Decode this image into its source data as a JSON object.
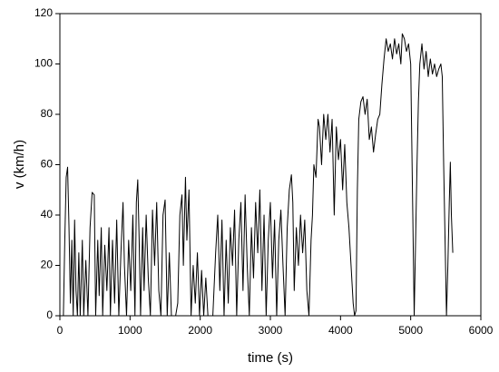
{
  "chart_data": {
    "type": "line",
    "xlabel": "time (s)",
    "ylabel": "v (km/h)",
    "color": "#000000",
    "xlim": [
      0,
      6000
    ],
    "xticks": [
      0,
      1000,
      2000,
      3000,
      4000,
      5000,
      6000
    ],
    "ylim": [
      0,
      120
    ],
    "yticks": [
      0,
      20,
      40,
      60,
      80,
      100,
      120
    ],
    "x": [
      0,
      50,
      70,
      90,
      110,
      130,
      150,
      170,
      190,
      210,
      230,
      250,
      270,
      290,
      320,
      340,
      370,
      400,
      430,
      460,
      490,
      510,
      540,
      560,
      590,
      610,
      640,
      670,
      700,
      720,
      750,
      780,
      810,
      840,
      870,
      900,
      920,
      950,
      980,
      1010,
      1040,
      1070,
      1090,
      1110,
      1130,
      1150,
      1180,
      1200,
      1230,
      1260,
      1290,
      1320,
      1350,
      1380,
      1410,
      1440,
      1470,
      1500,
      1530,
      1560,
      1590,
      1650,
      1680,
      1710,
      1740,
      1760,
      1790,
      1810,
      1840,
      1870,
      1900,
      1930,
      1960,
      1990,
      2020,
      2050,
      2080,
      2110,
      2180,
      2220,
      2250,
      2280,
      2310,
      2340,
      2370,
      2400,
      2430,
      2460,
      2490,
      2520,
      2550,
      2580,
      2610,
      2640,
      2670,
      2700,
      2730,
      2760,
      2790,
      2820,
      2850,
      2880,
      2910,
      2940,
      2970,
      3000,
      3030,
      3060,
      3090,
      3120,
      3150,
      3180,
      3210,
      3240,
      3270,
      3300,
      3320,
      3340,
      3370,
      3400,
      3430,
      3460,
      3490,
      3520,
      3550,
      3580,
      3600,
      3620,
      3650,
      3680,
      3700,
      3730,
      3760,
      3790,
      3820,
      3850,
      3880,
      3910,
      3940,
      3970,
      4000,
      4030,
      4060,
      4090,
      4120,
      4150,
      4180,
      4200,
      4220,
      4240,
      4260,
      4290,
      4320,
      4350,
      4380,
      4410,
      4440,
      4470,
      4500,
      4530,
      4560,
      4590,
      4620,
      4650,
      4680,
      4710,
      4740,
      4770,
      4800,
      4830,
      4860,
      4880,
      4910,
      4940,
      4970,
      5000,
      5030,
      5050,
      5070,
      5090,
      5110,
      5130,
      5160,
      5190,
      5220,
      5250,
      5280,
      5310,
      5340,
      5370,
      5400,
      5430,
      5450,
      5470,
      5490,
      5510,
      5530,
      5550,
      5565,
      5580,
      5600
    ],
    "values": [
      0,
      0,
      30,
      55,
      59,
      35,
      5,
      30,
      0,
      38,
      10,
      0,
      25,
      0,
      30,
      0,
      22,
      0,
      35,
      49,
      48,
      0,
      30,
      8,
      35,
      0,
      28,
      10,
      35,
      0,
      30,
      5,
      38,
      0,
      25,
      45,
      20,
      0,
      30,
      10,
      40,
      0,
      45,
      54,
      30,
      0,
      35,
      10,
      40,
      15,
      0,
      42,
      20,
      45,
      10,
      0,
      40,
      46,
      0,
      25,
      0,
      0,
      5,
      40,
      48,
      20,
      55,
      30,
      50,
      0,
      20,
      5,
      25,
      0,
      18,
      0,
      15,
      0,
      0,
      25,
      40,
      10,
      38,
      0,
      30,
      5,
      35,
      20,
      42,
      0,
      30,
      45,
      10,
      48,
      20,
      0,
      35,
      15,
      45,
      25,
      50,
      10,
      40,
      0,
      30,
      45,
      15,
      38,
      0,
      30,
      42,
      20,
      0,
      35,
      50,
      56,
      45,
      10,
      35,
      20,
      40,
      25,
      38,
      10,
      0,
      30,
      40,
      60,
      55,
      78,
      75,
      60,
      80,
      70,
      80,
      65,
      78,
      40,
      75,
      62,
      70,
      50,
      68,
      45,
      35,
      20,
      5,
      0,
      2,
      50,
      78,
      85,
      87,
      80,
      86,
      70,
      75,
      65,
      72,
      78,
      80,
      92,
      102,
      110,
      105,
      108,
      102,
      110,
      104,
      108,
      100,
      112,
      110,
      105,
      108,
      100,
      40,
      0,
      30,
      60,
      85,
      100,
      108,
      98,
      105,
      95,
      102,
      96,
      100,
      95,
      98,
      100,
      95,
      60,
      30,
      0,
      20,
      45,
      61,
      40,
      25
    ]
  }
}
